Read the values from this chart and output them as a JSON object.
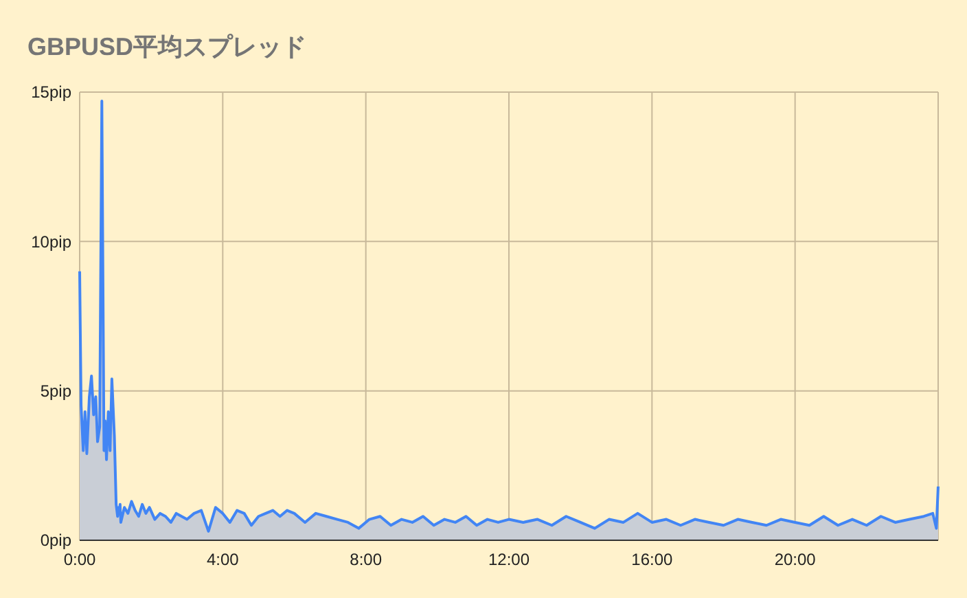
{
  "chart_data": {
    "type": "area",
    "title": "GBPUSD平均スプレッド",
    "xlim": [
      0,
      24
    ],
    "xticks": [
      {
        "value": 0,
        "label": "0:00"
      },
      {
        "value": 4,
        "label": "4:00"
      },
      {
        "value": 8,
        "label": "8:00"
      },
      {
        "value": 12,
        "label": "12:00"
      },
      {
        "value": 16,
        "label": "16:00"
      },
      {
        "value": 20,
        "label": "20:00"
      }
    ],
    "ylim": [
      0,
      15
    ],
    "yticks": [
      {
        "value": 0,
        "label": "0pip"
      },
      {
        "value": 5,
        "label": "5pip"
      },
      {
        "value": 10,
        "label": "10pip"
      },
      {
        "value": 15,
        "label": "15pip"
      }
    ],
    "grid": true,
    "series": [
      {
        "color": "#4285f4",
        "x": [
          0,
          0.04,
          0.1,
          0.15,
          0.2,
          0.27,
          0.33,
          0.39,
          0.45,
          0.5,
          0.56,
          0.62,
          0.68,
          0.71,
          0.75,
          0.8,
          0.85,
          0.9,
          0.97,
          1.02,
          1.06,
          1.09,
          1.11,
          1.13,
          1.15,
          1.25,
          1.35,
          1.45,
          1.55,
          1.65,
          1.75,
          1.85,
          1.95,
          2.1,
          2.25,
          2.4,
          2.55,
          2.7,
          2.85,
          3.0,
          3.2,
          3.4,
          3.6,
          3.8,
          4.0,
          4.2,
          4.4,
          4.6,
          4.8,
          5.0,
          5.2,
          5.4,
          5.6,
          5.8,
          6.0,
          6.3,
          6.6,
          6.9,
          7.2,
          7.5,
          7.8,
          8.1,
          8.4,
          8.7,
          9.0,
          9.3,
          9.6,
          9.9,
          10.2,
          10.5,
          10.8,
          11.1,
          11.4,
          11.7,
          12.0,
          12.4,
          12.8,
          13.2,
          13.6,
          14.0,
          14.4,
          14.8,
          15.2,
          15.6,
          16.0,
          16.4,
          16.8,
          17.2,
          17.6,
          18.0,
          18.4,
          18.8,
          19.2,
          19.6,
          20.0,
          20.4,
          20.8,
          21.2,
          21.6,
          22.0,
          22.4,
          22.8,
          23.2,
          23.6,
          23.85,
          23.95,
          24
        ],
        "values": [
          9.0,
          4.5,
          3.0,
          4.3,
          2.9,
          4.8,
          5.5,
          4.2,
          4.8,
          3.3,
          3.8,
          14.7,
          3.0,
          4.0,
          2.7,
          4.3,
          3.0,
          5.4,
          3.5,
          1.2,
          0.8,
          1.1,
          0.9,
          1.2,
          0.6,
          1.1,
          0.9,
          1.3,
          1.0,
          0.8,
          1.2,
          0.9,
          1.1,
          0.7,
          0.9,
          0.8,
          0.6,
          0.9,
          0.8,
          0.7,
          0.9,
          1.0,
          0.3,
          1.1,
          0.9,
          0.6,
          1.0,
          0.9,
          0.5,
          0.8,
          0.9,
          1.0,
          0.8,
          1.0,
          0.9,
          0.6,
          0.9,
          0.8,
          0.7,
          0.6,
          0.4,
          0.7,
          0.8,
          0.5,
          0.7,
          0.6,
          0.8,
          0.5,
          0.7,
          0.6,
          0.8,
          0.5,
          0.7,
          0.6,
          0.7,
          0.6,
          0.7,
          0.5,
          0.8,
          0.6,
          0.4,
          0.7,
          0.6,
          0.9,
          0.6,
          0.7,
          0.5,
          0.7,
          0.6,
          0.5,
          0.7,
          0.6,
          0.5,
          0.7,
          0.6,
          0.5,
          0.8,
          0.5,
          0.7,
          0.5,
          0.8,
          0.6,
          0.7,
          0.8,
          0.9,
          0.4,
          1.8
        ]
      }
    ]
  }
}
